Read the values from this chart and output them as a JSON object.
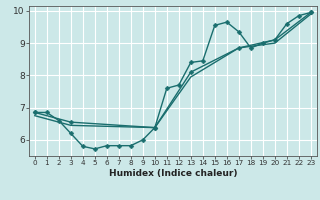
{
  "xlabel": "Humidex (Indice chaleur)",
  "bg_color": "#cce8e8",
  "grid_color": "#ffffff",
  "line_color": "#1a6e6e",
  "xlim": [
    -0.5,
    23.5
  ],
  "ylim": [
    5.5,
    10.15
  ],
  "yticks": [
    6,
    7,
    8,
    9,
    10
  ],
  "xticks": [
    0,
    1,
    2,
    3,
    4,
    5,
    6,
    7,
    8,
    9,
    10,
    11,
    12,
    13,
    14,
    15,
    16,
    17,
    18,
    19,
    20,
    21,
    22,
    23
  ],
  "line1_x": [
    0,
    1,
    2,
    3,
    4,
    5,
    6,
    7,
    8,
    9,
    10,
    11,
    12,
    13,
    14,
    15,
    16,
    17,
    18,
    19,
    20,
    21,
    22,
    23
  ],
  "line1_y": [
    6.85,
    6.85,
    6.6,
    6.2,
    5.8,
    5.72,
    5.82,
    5.82,
    5.82,
    6.0,
    6.38,
    7.6,
    7.7,
    8.4,
    8.45,
    9.55,
    9.65,
    9.35,
    8.85,
    9.0,
    9.1,
    9.6,
    9.85,
    9.95
  ],
  "line2_x": [
    0,
    3,
    10,
    13,
    17,
    20,
    23
  ],
  "line2_y": [
    6.85,
    6.55,
    6.38,
    8.1,
    8.85,
    9.1,
    9.95
  ],
  "line3_x": [
    0,
    3,
    10,
    13,
    17,
    20,
    23
  ],
  "line3_y": [
    6.75,
    6.45,
    6.38,
    7.95,
    8.85,
    9.0,
    9.9
  ],
  "marker_size": 2.5,
  "line_width": 1.0
}
